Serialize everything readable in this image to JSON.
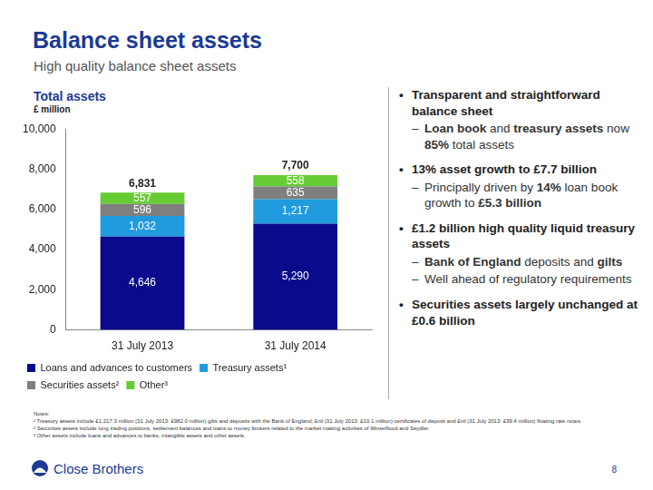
{
  "slide": {
    "title": "Balance sheet assets",
    "subtitle": "High quality balance sheet assets",
    "bullets": [
      {
        "text": "Transparent and straightforward balance sheet",
        "subs": [
          [
            {
              "text": "Loan book",
              "bold": true
            },
            {
              "text": " and ",
              "bold": false
            },
            {
              "text": "treasury assets",
              "bold": true
            },
            {
              "text": " now ",
              "bold": false
            },
            {
              "text": "85%",
              "bold": true
            },
            {
              "text": " total assets",
              "bold": false
            }
          ]
        ]
      },
      {
        "text": "13% asset growth to £7.7 billion",
        "subs": [
          [
            {
              "text": "Principally driven by ",
              "bold": false
            },
            {
              "text": "14%",
              "bold": true
            },
            {
              "text": " loan book growth to ",
              "bold": false
            },
            {
              "text": "£5.3 billion",
              "bold": true
            }
          ]
        ]
      },
      {
        "text": "£1.2 billion high quality liquid treasury assets",
        "subs": [
          [
            {
              "text": "Bank of England",
              "bold": true
            },
            {
              "text": " deposits and ",
              "bold": false
            },
            {
              "text": "gilts",
              "bold": true
            }
          ],
          [
            {
              "text": "Well ahead of regulatory requirements",
              "bold": false
            }
          ]
        ]
      },
      {
        "text": "Securities assets largely unchanged at £0.6 billion",
        "subs": []
      }
    ],
    "notes": [
      "Notes:",
      "¹ Treasury assets include £1,217.3 million (31 July 2013: £982.0 million) gilts and deposits with the Bank of England, £nil (31 July 2013: £10.1 million) certificates of deposit and £nil (31 July 2013: £39.4 million) floating rate notes.",
      "² Securities assets include long trading positions, settlement balances and loans to money brokers related to the market making activities of Winterflood and Seydler.",
      "³ Other assets include loans and advances to banks, intangible assets and other assets."
    ],
    "logo": "Close Brothers",
    "page": "8"
  },
  "chart_data": {
    "type": "bar",
    "title": "Total assets",
    "y_label": "£ million",
    "categories": [
      "31 July 2013",
      "31 July 2014"
    ],
    "stacked": true,
    "data_labels": true,
    "grid": false,
    "legend": "bottom",
    "ylim": [
      0,
      10000
    ],
    "yticks": [
      0,
      {
        "value": 2000,
        "label": "2,000"
      },
      {
        "value": 4000,
        "label": "4,000"
      },
      {
        "value": 6000,
        "label": "6,000"
      },
      {
        "value": 8000,
        "label": "8,000"
      },
      {
        "value": 10000,
        "label": "10,000"
      }
    ],
    "series": [
      {
        "name": "Loans and advances to customers",
        "color": "#0a0a8c",
        "values": [
          4646,
          5290
        ],
        "value_labels": [
          "4,646",
          "5,290"
        ]
      },
      {
        "name": "Treasury assets¹",
        "color": "#1f9bde",
        "values": [
          1032,
          1217
        ],
        "value_labels": [
          "1,032",
          "1,217"
        ]
      },
      {
        "name": "Securities assets²",
        "color": "#7f7f7f",
        "values": [
          596,
          635
        ]
      },
      {
        "name": "Other³",
        "color": "#66cc33",
        "values": [
          557,
          558
        ]
      }
    ],
    "totals": [
      6831,
      7700
    ],
    "total_labels": [
      "6,831",
      "7,700"
    ]
  }
}
